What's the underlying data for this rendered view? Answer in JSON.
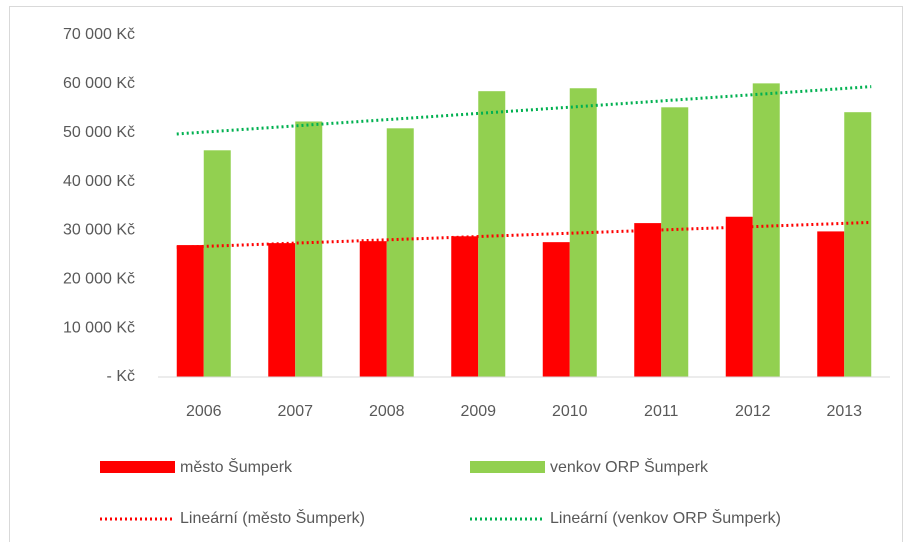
{
  "chart_data": {
    "type": "bar",
    "categories": [
      "2006",
      "2007",
      "2008",
      "2009",
      "2010",
      "2011",
      "2012",
      "2013"
    ],
    "series": [
      {
        "name": "město Šumperk",
        "color": "#ff0000",
        "values": [
          27000,
          27400,
          27800,
          28800,
          27600,
          31500,
          32800,
          29800
        ],
        "trend": {
          "name": "Lineární (město Šumperk)",
          "color": "#ff0000"
        }
      },
      {
        "name": "venkov ORP Šumperk",
        "color": "#92d050",
        "values": [
          46400,
          52300,
          50900,
          58500,
          59100,
          55200,
          60100,
          54200
        ],
        "trend": {
          "name": "Lineární (venkov ORP Šumperk)",
          "color": "#00b050"
        }
      }
    ],
    "ylim": [
      0,
      70000
    ],
    "yticks": [
      {
        "value": 0,
        "label": "- Kč"
      },
      {
        "value": 10000,
        "label": "10 000 Kč"
      },
      {
        "value": 20000,
        "label": "20 000 Kč"
      },
      {
        "value": 30000,
        "label": "30 000 Kč"
      },
      {
        "value": 40000,
        "label": "40 000 Kč"
      },
      {
        "value": 50000,
        "label": "50 000 Kč"
      },
      {
        "value": 60000,
        "label": "60 000 Kč"
      },
      {
        "value": 70000,
        "label": "70 000 Kč"
      }
    ],
    "grid": false,
    "legend": "bottom"
  }
}
